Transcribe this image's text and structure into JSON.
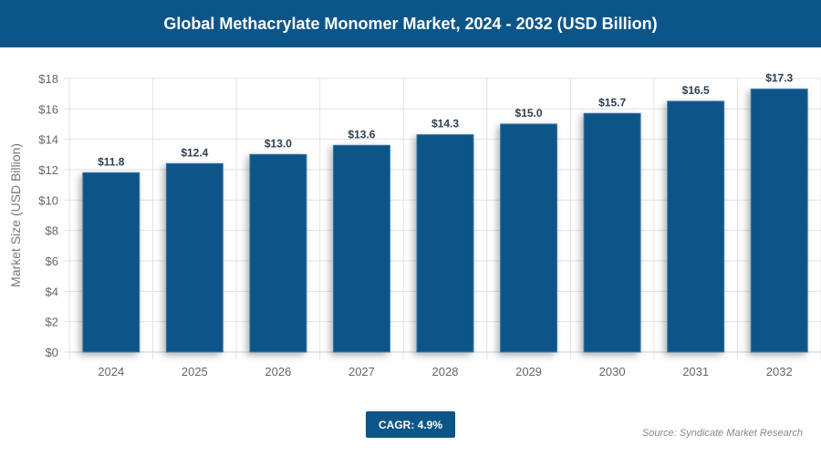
{
  "title": "Global Methacrylate Monomer Market, 2024 - 2032 (USD Billion)",
  "cagr": "CAGR: 4.9%",
  "source": "Source: Syndicate Market Research",
  "chart_data": {
    "type": "bar",
    "title": "Global Methacrylate Monomer Market, 2024 - 2032 (USD Billion)",
    "xlabel": "",
    "ylabel": "Market Size (USD Billion)",
    "categories": [
      "2024",
      "2025",
      "2026",
      "2027",
      "2028",
      "2029",
      "2030",
      "2031",
      "2032"
    ],
    "values": [
      11.8,
      12.4,
      13.0,
      13.6,
      14.3,
      15.0,
      15.7,
      16.5,
      17.3
    ],
    "data_labels": [
      "$11.8",
      "$12.4",
      "$13.0",
      "$13.6",
      "$14.3",
      "$15.0",
      "$15.7",
      "$16.5",
      "$17.3"
    ],
    "ylim": [
      0,
      18
    ],
    "yticks": [
      "$0",
      "$2",
      "$4",
      "$6",
      "$8",
      "$10",
      "$12",
      "$14",
      "$16",
      "$18"
    ],
    "grid": true,
    "bar_color": "#0c5588"
  }
}
